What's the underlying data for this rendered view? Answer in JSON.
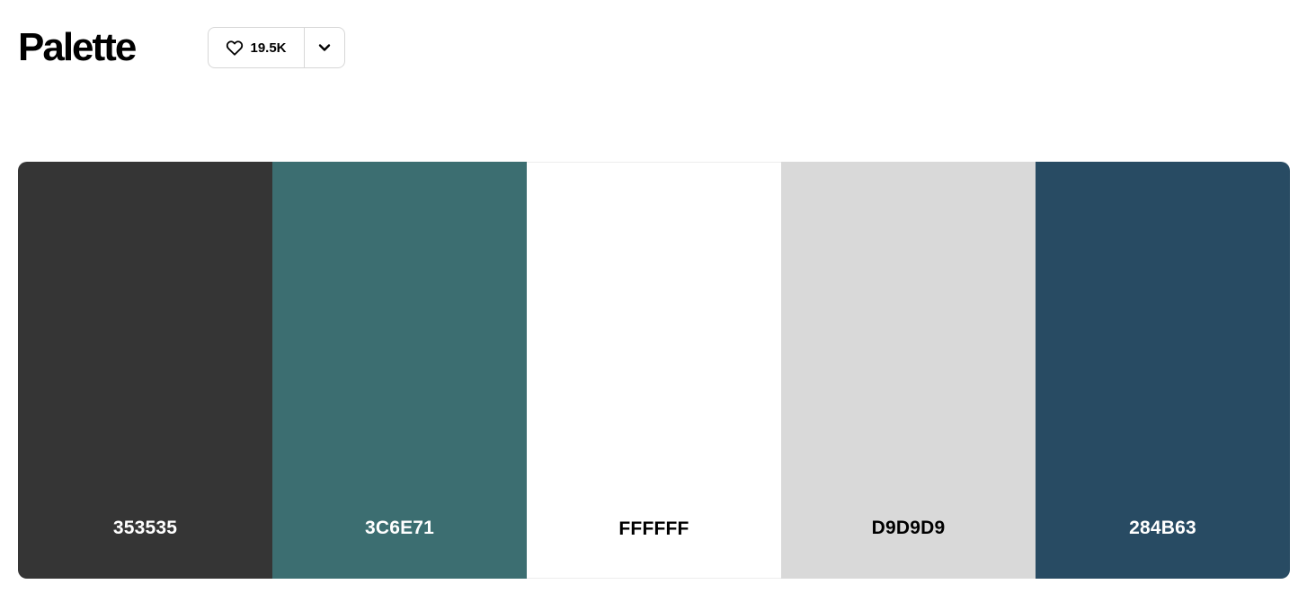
{
  "header": {
    "title": "Palette",
    "likes": {
      "count_label": "19.5K",
      "icon": "heart-icon"
    },
    "more_icon": "chevron-down-icon"
  },
  "palette": {
    "swatches": [
      {
        "code": "353535",
        "color": "#353535",
        "text_color": "#ffffff"
      },
      {
        "code": "3C6E71",
        "color": "#3C6E71",
        "text_color": "#ffffff"
      },
      {
        "code": "FFFFFF",
        "color": "#FFFFFF",
        "text_color": "#000000"
      },
      {
        "code": "D9D9D9",
        "color": "#D9D9D9",
        "text_color": "#000000"
      },
      {
        "code": "284B63",
        "color": "#284B63",
        "text_color": "#ffffff"
      }
    ]
  }
}
